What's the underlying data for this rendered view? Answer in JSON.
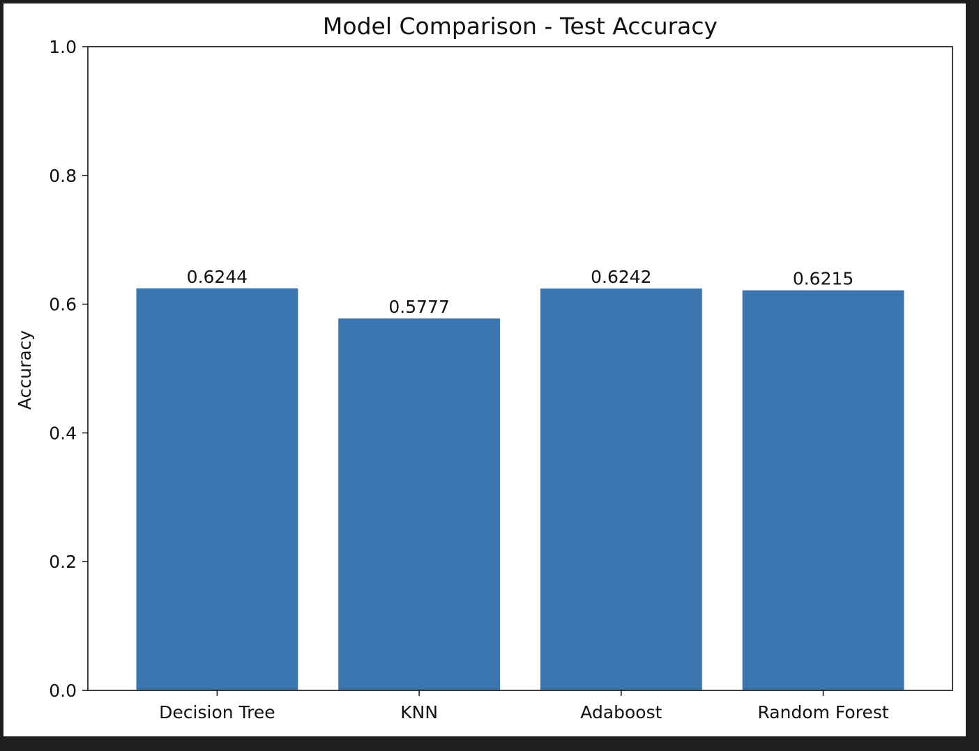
{
  "colors": {
    "bar": "#3b75af",
    "background": "#ffffff",
    "frame": "#1e1e1e",
    "text": "#111111"
  },
  "chart_data": {
    "type": "bar",
    "title": "Model Comparison - Test Accuracy",
    "xlabel": "",
    "ylabel": "Accuracy",
    "categories": [
      "Decision Tree",
      "KNN",
      "Adaboost",
      "Random Forest"
    ],
    "values": [
      0.6244,
      0.5777,
      0.6242,
      0.6215
    ],
    "value_labels": [
      "0.6244",
      "0.5777",
      "0.6242",
      "0.6215"
    ],
    "ylim": [
      0,
      1.0
    ],
    "yticks": [
      0.0,
      0.2,
      0.4,
      0.6,
      0.8,
      1.0
    ],
    "ytick_labels": [
      "0.0",
      "0.2",
      "0.4",
      "0.6",
      "0.8",
      "1.0"
    ],
    "grid": false,
    "legend": "none"
  }
}
